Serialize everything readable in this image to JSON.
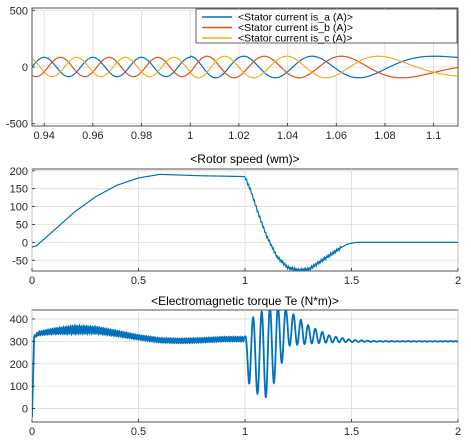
{
  "chart_data": [
    {
      "type": "line",
      "title": "",
      "xlim": [
        0.935,
        1.11
      ],
      "ylim": [
        -520,
        520
      ],
      "xticks": [
        "0.94",
        "0.96",
        "0.98",
        "1",
        "1.02",
        "1.04",
        "1.06",
        "1.08",
        "1.1"
      ],
      "xtick_values": [
        0.94,
        0.96,
        0.98,
        1.0,
        1.02,
        1.04,
        1.06,
        1.08,
        1.1
      ],
      "yticks": [
        "-500",
        "0",
        "500"
      ],
      "ytick_values": [
        -500,
        0,
        500
      ],
      "grid": true,
      "legend_position": "top-right",
      "series": [
        {
          "name": "<Stator current is_a (A)>",
          "color": "#0072bd",
          "phase_deg": 0
        },
        {
          "name": "<Stator current is_b (A)>",
          "color": "#d95319",
          "phase_deg": -120
        },
        {
          "name": "<Stator current is_c (A)>",
          "color": "#edb120",
          "phase_deg": 120
        }
      ],
      "segments": [
        {
          "from": 0.935,
          "to": 1.0,
          "amplitude": 85,
          "frequency_hz": 50
        },
        {
          "from": 1.0,
          "to": 1.11,
          "amplitude": 95,
          "frequency_hz_start": 50,
          "frequency_hz_end": 6
        }
      ]
    },
    {
      "type": "line",
      "title": "<Rotor speed (wm)>",
      "xlim": [
        0,
        2
      ],
      "ylim": [
        -80,
        205
      ],
      "xticks": [
        "0",
        "0.5",
        "1",
        "1.5",
        "2"
      ],
      "xtick_values": [
        0,
        0.5,
        1.0,
        1.5,
        2.0
      ],
      "yticks": [
        "-50",
        "0",
        "50",
        "100",
        "150",
        "200"
      ],
      "ytick_values": [
        -50,
        0,
        50,
        100,
        150,
        200
      ],
      "grid": true,
      "series": [
        {
          "color": "#0072bd",
          "x": [
            0,
            0.02,
            0.1,
            0.2,
            0.3,
            0.4,
            0.5,
            0.6,
            0.7,
            0.8,
            0.9,
            0.99,
            1.0,
            1.03,
            1.06,
            1.1,
            1.15,
            1.2,
            1.25,
            1.3,
            1.35,
            1.4,
            1.45,
            1.48,
            1.52,
            1.6,
            1.8,
            2.0
          ],
          "y": [
            -13,
            -10,
            32,
            85,
            128,
            160,
            180,
            190,
            188,
            186,
            185,
            184,
            183,
            140,
            85,
            20,
            -40,
            -70,
            -78,
            -75,
            -55,
            -35,
            -15,
            -5,
            0,
            0,
            0,
            0
          ]
        }
      ]
    },
    {
      "type": "line",
      "title": "<Electromagnetic torque Te (N*m)>",
      "xlim": [
        0,
        2
      ],
      "ylim": [
        -60,
        440
      ],
      "xticks": [
        "0",
        "0.5",
        "1",
        "1.5",
        "2"
      ],
      "xtick_values": [
        0,
        0.5,
        1.0,
        1.5,
        2.0
      ],
      "yticks": [
        "0",
        "100",
        "200",
        "300",
        "400"
      ],
      "ytick_values": [
        0,
        100,
        200,
        300,
        400
      ],
      "grid": true,
      "series": [
        {
          "color": "#0072bd",
          "x": [
            0,
            0.01,
            0.03,
            0.1,
            0.2,
            0.3,
            0.4,
            0.5,
            0.6,
            0.7,
            0.8,
            0.9,
            1.0,
            1.02,
            1.05,
            1.1,
            1.15,
            1.2,
            1.3,
            1.4,
            1.5,
            1.6,
            1.8,
            2.0
          ],
          "y": [
            -40,
            320,
            335,
            345,
            352,
            350,
            335,
            318,
            305,
            302,
            305,
            310,
            310,
            250,
            240,
            250,
            300,
            360,
            330,
            310,
            302,
            300,
            300,
            300
          ],
          "ripple": [
            0,
            5,
            8,
            12,
            18,
            15,
            12,
            10,
            10,
            10,
            10,
            10,
            10,
            150,
            170,
            200,
            160,
            80,
            40,
            15,
            5,
            2,
            1,
            1
          ]
        }
      ]
    }
  ]
}
